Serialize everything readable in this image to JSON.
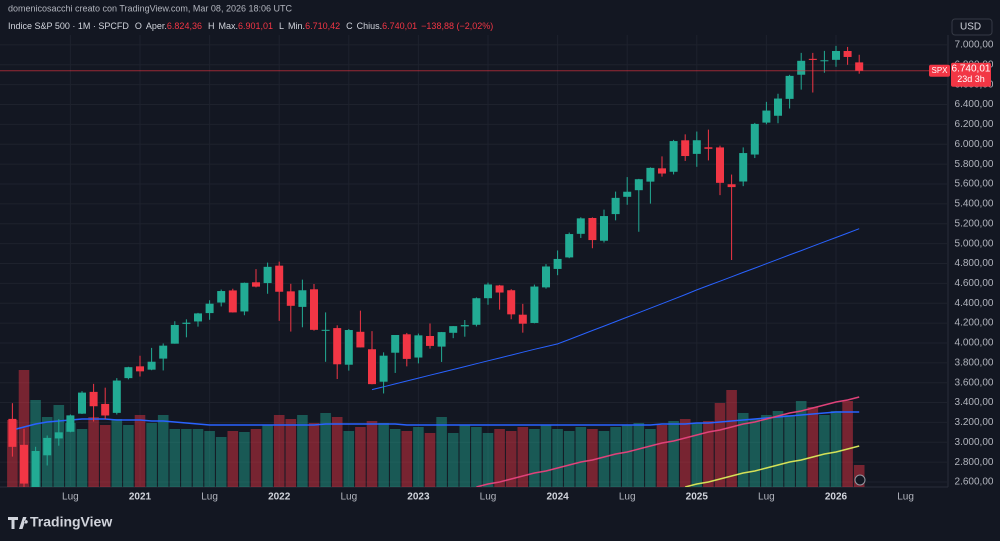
{
  "header": {
    "caption": "domenicosacchi creato con TradingView.com, Mar 08, 2026 18:06 UTC",
    "logo": "TradingView"
  },
  "chart_data": {
    "type": "candlestick",
    "legend": {
      "symbol": "Indice S&P 500 · 1M · SPCFD",
      "items": [
        {
          "key": "O",
          "label": "Aper.",
          "value": "6.824,36"
        },
        {
          "key": "H",
          "label": "Max.",
          "value": "6.901,01"
        },
        {
          "key": "L",
          "label": "Min.",
          "value": "6.710,42"
        },
        {
          "key": "C",
          "label": "Chius.",
          "value": "6.740,01"
        }
      ],
      "change": "−138,88 (−2,02%)"
    },
    "currency": "USD",
    "symbol": "SPX",
    "last_price": {
      "value": 6740.01,
      "label": "6.740,01"
    },
    "countdown": "23d 3h",
    "categories": [
      null,
      null,
      null,
      null,
      null,
      "Lug",
      null,
      null,
      null,
      null,
      null,
      "2021",
      null,
      null,
      null,
      null,
      null,
      "Lug",
      null,
      null,
      null,
      null,
      null,
      "2022",
      null,
      null,
      null,
      null,
      null,
      "Lug",
      null,
      null,
      null,
      null,
      null,
      "2023",
      null,
      null,
      null,
      null,
      null,
      "Lug",
      null,
      null,
      null,
      null,
      null,
      "2024",
      null,
      null,
      null,
      null,
      null,
      "Lug",
      null,
      null,
      null,
      null,
      null,
      "2025",
      null,
      null,
      null,
      null,
      null,
      "Lug",
      null,
      null,
      null,
      null,
      null,
      "2026",
      null,
      null
    ],
    "future_label": "Lug",
    "open": [
      3235.66,
      2974.28,
      2498.08,
      2869.09,
      3038.78,
      3105.92,
      3288.26,
      3507.44,
      3385.87,
      3296.2,
      3645.87,
      3764.61,
      3731.17,
      3842.51,
      3992.78,
      4191.98,
      4216.52,
      4300.73,
      4406.86,
      4528.8,
      4317.16,
      4610.62,
      4602.82,
      4778.14,
      4519.57,
      4363.14,
      4540.32,
      4130.61,
      4149.78,
      3781.0,
      4112.38,
      3936.73,
      3609.78,
      3901.79,
      4087.14,
      3853.29,
      4070.07,
      3963.34,
      4102.2,
      4166.79,
      4183.03,
      4450.48,
      4578.83,
      4530.6,
      4284.52,
      4201.27,
      4559.43,
      4745.2,
      4861.11,
      5098.51,
      5257.97,
      5029.03,
      5297.15,
      5471.08,
      5537.84,
      5623.89,
      5757.73,
      5723.22,
      6040.11,
      5903.26,
      5969.65,
      5968.33,
      5597.53,
      5625.14,
      5896.68,
      6218.0,
      6287.0,
      6457.0,
      6700.0,
      6860.0,
      6840.0,
      6850.0,
      6939.0,
      6824.36
    ],
    "high": [
      3393.52,
      3136.72,
      2954.86,
      3068.67,
      3233.13,
      3279.99,
      3514.77,
      3588.11,
      3549.85,
      3645.99,
      3760.2,
      3870.9,
      3950.43,
      3994.41,
      4218.78,
      4238.04,
      4302.43,
      4429.97,
      4537.36,
      4545.85,
      4608.08,
      4743.83,
      4808.93,
      4818.62,
      4595.31,
      4637.3,
      4593.45,
      4307.66,
      4177.51,
      4140.15,
      4325.28,
      4119.28,
      3905.42,
      4080.11,
      4100.96,
      4094.21,
      4195.44,
      4110.75,
      4170.06,
      4231.1,
      4458.48,
      4607.07,
      4584.62,
      4541.25,
      4393.57,
      4587.64,
      4793.3,
      4931.09,
      5111.06,
      5264.85,
      5263.95,
      5341.88,
      5523.64,
      5669.67,
      5651.62,
      5767.37,
      5878.46,
      6044.17,
      6099.97,
      6128.18,
      6147.43,
      5986.09,
      5695.31,
      5968.61,
      6215.08,
      6427.0,
      6508.0,
      6699.0,
      6920.0,
      6920.0,
      6940.0,
      6990.0,
      6980.0,
      6901.01
    ],
    "low": [
      2855.84,
      2191.86,
      2447.49,
      2766.64,
      2965.66,
      3101.17,
      3284.53,
      3209.45,
      3233.94,
      3279.74,
      3633.4,
      3662.71,
      3725.62,
      3723.34,
      3992.78,
      4056.88,
      4164.4,
      4233.13,
      4367.73,
      4305.91,
      4278.94,
      4560.0,
      4495.12,
      4222.62,
      4114.65,
      4157.87,
      4124.28,
      3810.32,
      3636.87,
      3721.56,
      3954.53,
      3584.13,
      3491.58,
      3698.15,
      3764.49,
      3794.33,
      3943.08,
      3808.86,
      4048.28,
      4062.98,
      4166.15,
      4385.05,
      4335.31,
      4238.63,
      4103.78,
      4197.74,
      4546.5,
      4682.11,
      4853.52,
      5056.82,
      4953.56,
      5011.05,
      5234.32,
      5390.95,
      5119.26,
      5402.62,
      5674.0,
      5696.51,
      5832.3,
      5773.31,
      5837.66,
      5488.73,
      4835.04,
      5578.64,
      5861.43,
      6201.0,
      6212.0,
      6360.0,
      6550.0,
      6521.0,
      6720.0,
      6780.0,
      6800.0,
      6710.42
    ],
    "close": [
      2954.22,
      2584.59,
      2912.43,
      3044.31,
      3100.29,
      3271.12,
      3500.31,
      3363.0,
      3269.96,
      3621.63,
      3756.07,
      3714.24,
      3811.15,
      3972.89,
      4181.17,
      4204.11,
      4297.5,
      4395.26,
      4522.68,
      4307.54,
      4605.38,
      4567.0,
      4766.18,
      4515.55,
      4373.94,
      4530.41,
      4131.93,
      4132.15,
      3785.38,
      4130.29,
      3955.0,
      3585.62,
      3871.98,
      4080.11,
      3839.5,
      4076.6,
      3970.15,
      4109.31,
      4169.48,
      4179.83,
      4450.38,
      4588.96,
      4507.66,
      4288.05,
      4193.8,
      4567.8,
      4769.83,
      4845.65,
      5096.27,
      5254.35,
      5035.69,
      5277.51,
      5460.48,
      5522.3,
      5648.4,
      5762.48,
      5705.45,
      6032.38,
      5881.63,
      6040.53,
      5954.5,
      5611.85,
      5569.06,
      5911.69,
      6204.95,
      6339.39,
      6460.26,
      6688.46,
      6840.2,
      6849.09,
      6845.5,
      6939.0,
      6878.89,
      6740.01
    ],
    "up_color": "#22ab94",
    "down_color": "#f23645",
    "ma": {
      "color": "#2962ff",
      "values": [
        null,
        null,
        null,
        null,
        null,
        null,
        null,
        null,
        null,
        null,
        null,
        null,
        null,
        null,
        null,
        null,
        null,
        null,
        null,
        null,
        null,
        null,
        null,
        null,
        null,
        null,
        null,
        null,
        null,
        null,
        null,
        3530,
        3559,
        3588,
        3617,
        3646,
        3675,
        3704,
        3733,
        3762,
        3791,
        3820,
        3849,
        3878,
        3907,
        3936,
        3963,
        3990,
        4035,
        4080,
        4125,
        4170,
        4215,
        4260,
        4305,
        4350,
        4395,
        4440,
        4487,
        4534,
        4578,
        4622,
        4666,
        4710,
        4754,
        4798,
        4842,
        4886,
        4930,
        4974,
        5018,
        5062,
        5106,
        5150
      ]
    },
    "volume": [
      67,
      117,
      87,
      70,
      82,
      64,
      58,
      70,
      62,
      68,
      62,
      72,
      64,
      72,
      58,
      58,
      58,
      56,
      50,
      56,
      55,
      58,
      62,
      72,
      68,
      72,
      64,
      74,
      70,
      56,
      60,
      66,
      64,
      58,
      56,
      60,
      54,
      70,
      54,
      62,
      60,
      54,
      58,
      56,
      60,
      58,
      62,
      58,
      56,
      60,
      58,
      56,
      60,
      62,
      64,
      58,
      62,
      66,
      68,
      64,
      66,
      84,
      97,
      74,
      68,
      72,
      76,
      72,
      86,
      80,
      72,
      76,
      86,
      22
    ],
    "volume_lim": [
      0,
      160
    ],
    "volume_lines": [
      {
        "color": "#2962ff",
        "values": [
          57,
          60,
          63,
          65,
          66,
          67,
          68,
          68,
          68,
          67,
          67,
          67,
          66,
          66,
          65,
          64,
          63,
          62,
          62,
          62,
          62,
          62,
          62,
          62,
          62,
          62,
          62,
          63,
          63,
          63,
          63,
          63,
          63,
          63,
          62,
          62,
          62,
          62,
          62,
          62,
          62,
          62,
          62,
          62,
          62,
          62,
          62,
          62,
          62,
          62,
          62,
          62,
          62,
          62,
          62,
          62,
          63,
          63,
          63,
          64,
          64,
          65,
          66,
          67,
          68,
          69,
          70,
          71,
          72,
          73,
          74,
          75,
          75,
          75
        ]
      },
      {
        "color": "#e0427a",
        "values": [
          null,
          null,
          null,
          null,
          null,
          null,
          null,
          null,
          null,
          null,
          null,
          null,
          null,
          null,
          null,
          null,
          null,
          null,
          null,
          null,
          null,
          null,
          null,
          null,
          null,
          null,
          null,
          null,
          null,
          null,
          null,
          null,
          null,
          null,
          null,
          null,
          null,
          null,
          null,
          null,
          0,
          3,
          5,
          8,
          11,
          14,
          16,
          19,
          22,
          25,
          27,
          30,
          33,
          35,
          38,
          41,
          44,
          46,
          49,
          52,
          55,
          57,
          60,
          63,
          65,
          68,
          71,
          74,
          76,
          79,
          82,
          85,
          87,
          90
        ]
      },
      {
        "color": "#d4e157",
        "values": [
          null,
          null,
          null,
          null,
          null,
          null,
          null,
          null,
          null,
          null,
          null,
          null,
          null,
          null,
          null,
          null,
          null,
          null,
          null,
          null,
          null,
          null,
          null,
          null,
          null,
          null,
          null,
          null,
          null,
          null,
          null,
          null,
          null,
          null,
          null,
          null,
          null,
          null,
          null,
          null,
          null,
          null,
          null,
          null,
          null,
          null,
          null,
          null,
          null,
          null,
          null,
          null,
          null,
          null,
          null,
          null,
          null,
          null,
          0,
          3,
          5,
          8,
          11,
          14,
          16,
          19,
          22,
          25,
          27,
          30,
          33,
          35,
          38,
          41
        ]
      }
    ],
    "ylim": [
      2550,
      7100
    ],
    "yticks": [
      {
        "value": 2600,
        "label": "2.600,00"
      },
      {
        "value": 2800,
        "label": "2.800,00"
      },
      {
        "value": 3000,
        "label": "3.000,00"
      },
      {
        "value": 3200,
        "label": "3.200,00"
      },
      {
        "value": 3400,
        "label": "3.400,00"
      },
      {
        "value": 3600,
        "label": "3.600,00"
      },
      {
        "value": 3800,
        "label": "3.800,00"
      },
      {
        "value": 4000,
        "label": "4.000,00"
      },
      {
        "value": 4200,
        "label": "4.200,00"
      },
      {
        "value": 4400,
        "label": "4.400,00"
      },
      {
        "value": 4600,
        "label": "4.600,00"
      },
      {
        "value": 4800,
        "label": "4.800,00"
      },
      {
        "value": 5000,
        "label": "5.000,00"
      },
      {
        "value": 5200,
        "label": "5.200,00"
      },
      {
        "value": 5400,
        "label": "5.400,00"
      },
      {
        "value": 5600,
        "label": "5.600,00"
      },
      {
        "value": 5800,
        "label": "5.800,00"
      },
      {
        "value": 6000,
        "label": "6.000,00"
      },
      {
        "value": 6200,
        "label": "6.200,00"
      },
      {
        "value": 6400,
        "label": "6.400,00"
      },
      {
        "value": 6600,
        "label": "6.600,00"
      },
      {
        "value": 6800,
        "label": "6.800,00"
      },
      {
        "value": 7000,
        "label": "7.000,00"
      }
    ],
    "grid": true
  }
}
